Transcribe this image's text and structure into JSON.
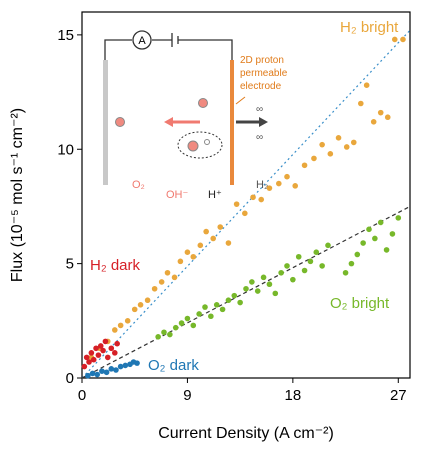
{
  "chart_data": {
    "type": "scatter",
    "xlabel": "Current Density (A cm⁻²)",
    "ylabel": "Flux (10⁻⁵ mol s⁻¹ cm⁻²)",
    "xlim": [
      0,
      28
    ],
    "ylim": [
      0,
      16
    ],
    "xticks": [
      0,
      9,
      18,
      27
    ],
    "yticks": [
      0,
      5,
      10,
      15
    ],
    "series": [
      {
        "name": "H₂ bright",
        "color": "#e9a73c",
        "x": [
          0.8,
          1.5,
          2.2,
          2.8,
          3.3,
          3.9,
          4.5,
          5.0,
          5.6,
          6.2,
          6.8,
          7.3,
          7.9,
          8.4,
          9.0,
          9.5,
          10.1,
          10.6,
          11.2,
          11.8,
          12.5,
          13.2,
          13.9,
          14.6,
          15.3,
          16.0,
          16.8,
          17.5,
          18.2,
          19.0,
          19.8,
          20.5,
          21.2,
          21.9,
          22.6,
          23.2,
          23.8,
          24.3,
          24.9,
          25.5,
          26.1,
          26.7,
          27.4
        ],
        "values": [
          0.9,
          1.3,
          1.6,
          2.1,
          2.3,
          2.5,
          3.0,
          3.2,
          3.4,
          3.9,
          4.2,
          4.6,
          4.4,
          5.1,
          5.5,
          5.3,
          5.8,
          6.4,
          6.1,
          6.6,
          5.9,
          7.6,
          7.2,
          7.9,
          7.8,
          8.3,
          8.5,
          8.8,
          8.4,
          9.3,
          9.6,
          10.2,
          9.8,
          10.5,
          10.1,
          10.3,
          12.0,
          12.8,
          11.2,
          11.6,
          11.4,
          14.8,
          14.8
        ]
      },
      {
        "name": "O₂ bright",
        "color": "#77b82a",
        "x": [
          6.5,
          7.0,
          7.5,
          8.0,
          8.5,
          9.0,
          9.5,
          10.0,
          10.5,
          11.0,
          11.5,
          12.0,
          12.5,
          13.0,
          13.5,
          14.0,
          14.5,
          15.0,
          15.5,
          16.0,
          16.5,
          17.0,
          17.5,
          18.0,
          18.5,
          19.0,
          19.5,
          20.0,
          20.5,
          21.0,
          22.5,
          23.0,
          23.5,
          24.0,
          24.5,
          25.0,
          25.5,
          26.0,
          26.5,
          27.0
        ],
        "values": [
          1.8,
          2.0,
          1.9,
          2.2,
          2.4,
          2.6,
          2.3,
          2.8,
          3.1,
          2.7,
          3.2,
          3.0,
          3.4,
          3.6,
          3.3,
          3.9,
          4.2,
          3.8,
          4.4,
          4.1,
          3.7,
          4.6,
          4.9,
          4.3,
          5.3,
          4.7,
          5.1,
          5.5,
          4.9,
          5.8,
          4.6,
          5.0,
          5.4,
          5.9,
          6.5,
          6.1,
          6.8,
          5.6,
          6.3,
          7.0
        ]
      },
      {
        "name": "H₂ dark",
        "color": "#d61f26",
        "x": [
          0.2,
          0.4,
          0.6,
          0.8,
          1.0,
          1.2,
          1.4,
          1.6,
          1.8,
          2.0,
          2.2,
          2.5,
          2.8,
          3.0
        ],
        "values": [
          0.5,
          0.9,
          0.7,
          1.1,
          0.8,
          1.3,
          1.0,
          1.4,
          1.2,
          1.6,
          0.9,
          1.3,
          1.1,
          1.5
        ]
      },
      {
        "name": "O₂ dark",
        "color": "#1f77b4",
        "x": [
          0.5,
          0.9,
          1.3,
          1.7,
          2.1,
          2.5,
          2.9,
          3.3,
          3.7,
          4.1,
          4.4,
          4.7
        ],
        "values": [
          0.1,
          0.2,
          0.15,
          0.3,
          0.25,
          0.4,
          0.35,
          0.5,
          0.55,
          0.6,
          0.7,
          0.65
        ]
      }
    ],
    "fit_lines": [
      {
        "color": "#3a8fc9",
        "style": "dotted",
        "x": [
          0,
          28
        ],
        "values": [
          0,
          15.2
        ]
      },
      {
        "color": "#333333",
        "style": "dashed",
        "x": [
          0,
          28
        ],
        "values": [
          0,
          7.5
        ]
      }
    ]
  },
  "inset": {
    "ammeter": "A",
    "electrode_label": [
      "2D proton",
      "permeable",
      "electrode"
    ],
    "o2": "O₂",
    "oh": "OH⁻",
    "h_plus": "H⁺",
    "h2": "H₂"
  }
}
